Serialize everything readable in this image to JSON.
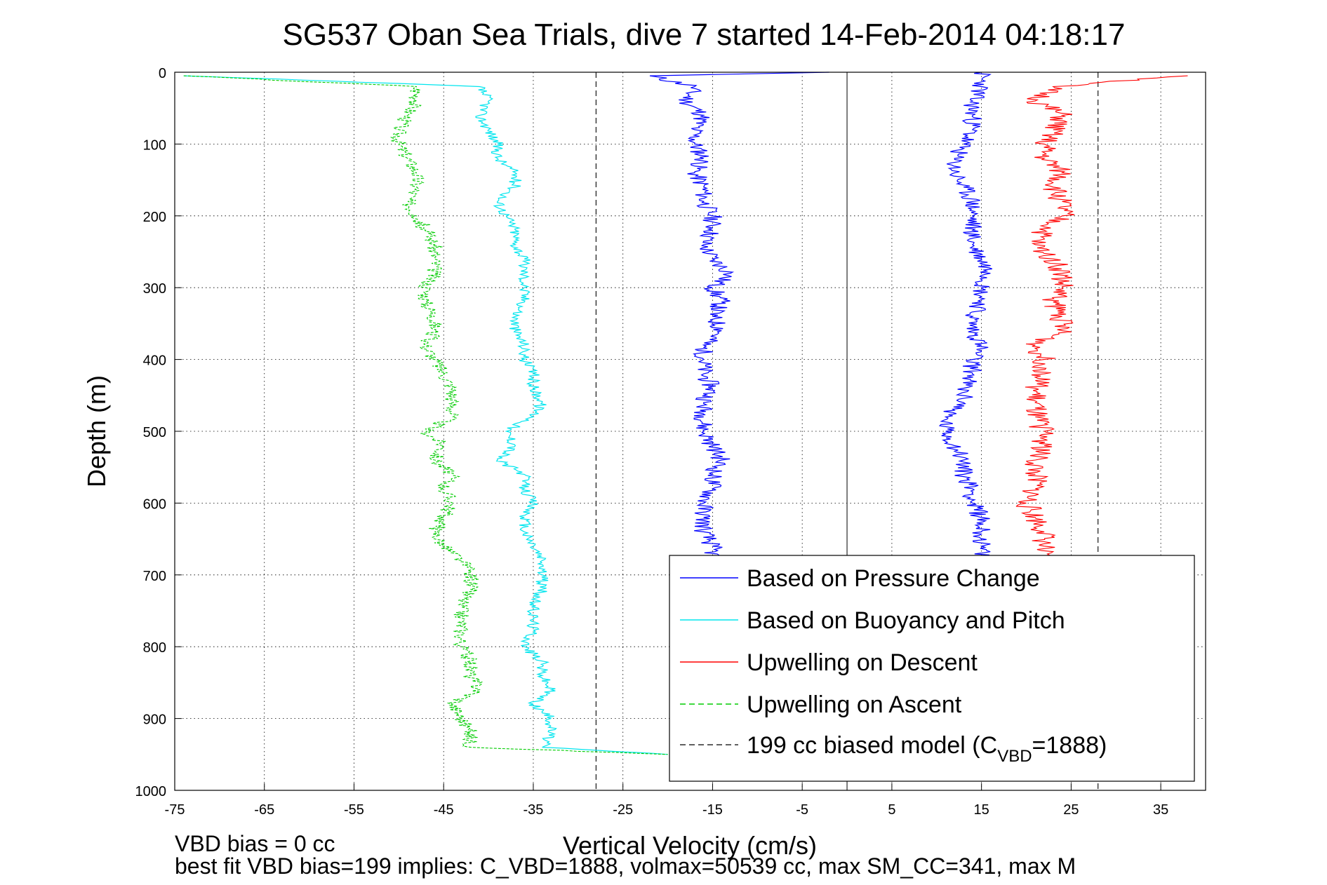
{
  "chart_data": {
    "type": "line",
    "title": "SG537 Oban Sea Trials, dive 7 started 14-Feb-2014 04:18:17",
    "xlabel": "Vertical Velocity (cm/s)",
    "ylabel": "Depth (m)",
    "xlim": [
      -75,
      40
    ],
    "ylim": [
      0,
      1000
    ],
    "y_reversed": true,
    "grid": true,
    "legend_position": "bottom-right",
    "x_ticks": [
      -75,
      -65,
      -55,
      -45,
      -35,
      -25,
      -15,
      -5,
      5,
      15,
      25,
      35
    ],
    "y_ticks": [
      0,
      100,
      200,
      300,
      400,
      500,
      600,
      700,
      800,
      900,
      1000
    ],
    "zero_line_x": 0,
    "series": [
      {
        "name": "Based on Pressure Change",
        "color": "#0000ff",
        "style": "solid",
        "depth": [
          0,
          5,
          20,
          40,
          60,
          80,
          100,
          120,
          140,
          160,
          180,
          200,
          220,
          240,
          260,
          280,
          300,
          320,
          340,
          360,
          380,
          400,
          420,
          440,
          460,
          480,
          500,
          520,
          540,
          560,
          580,
          600,
          620,
          640,
          660,
          680
        ],
        "descent_vv": [
          -2,
          -22,
          -17,
          -18,
          -16,
          -17,
          -17,
          -16,
          -17,
          -16,
          -16,
          -15,
          -15,
          -16,
          -15,
          -13,
          -15,
          -14,
          -15,
          -14,
          -16,
          -16,
          -16,
          -15,
          -16,
          -16,
          -16,
          -15,
          -14,
          -15,
          -15,
          -16,
          -16,
          -16,
          -15,
          -15
        ],
        "ascent_depth": [
          0,
          20,
          40,
          60,
          80,
          100,
          120,
          140,
          160,
          180,
          200,
          220,
          240,
          260,
          280,
          300,
          320,
          340,
          360,
          380,
          400,
          420,
          440,
          460,
          480,
          500,
          520,
          540,
          560,
          580,
          600,
          620,
          640,
          660,
          680
        ],
        "ascent_vv": [
          15,
          15,
          14,
          14,
          14,
          13,
          12,
          12,
          13,
          14,
          14,
          14,
          14,
          15,
          16,
          15,
          15,
          14,
          14,
          15,
          14,
          14,
          13,
          13,
          11,
          11,
          12,
          13,
          13,
          14,
          14,
          15,
          15,
          15,
          15
        ]
      },
      {
        "name": "Based on Buoyancy and Pitch",
        "color": "#00e5ee",
        "style": "solid",
        "depth": [
          5,
          20,
          40,
          60,
          80,
          100,
          120,
          140,
          160,
          180,
          200,
          220,
          240,
          260,
          280,
          300,
          320,
          340,
          360,
          380,
          400,
          420,
          440,
          460,
          480,
          500,
          520,
          540,
          560,
          580,
          600,
          620,
          640,
          660,
          680,
          700,
          720,
          740,
          760,
          780,
          800,
          820,
          840,
          860,
          880,
          900,
          920,
          940,
          950
        ],
        "values": [
          -74,
          -41,
          -40,
          -41,
          -40,
          -39,
          -39,
          -37,
          -37,
          -39,
          -38,
          -37,
          -37,
          -36,
          -36,
          -36,
          -36,
          -37,
          -37,
          -36,
          -36,
          -35,
          -35,
          -34,
          -35,
          -38,
          -37,
          -39,
          -36,
          -36,
          -35,
          -36,
          -36,
          -35,
          -34,
          -34,
          -34,
          -35,
          -35,
          -35,
          -36,
          -34,
          -34,
          -33,
          -35,
          -33,
          -33,
          -34,
          -20
        ]
      },
      {
        "name": "Upwelling on Descent",
        "color": "#ff0000",
        "style": "solid",
        "depth": [
          5,
          20,
          40,
          60,
          80,
          100,
          120,
          140,
          160,
          180,
          200,
          220,
          240,
          260,
          280,
          300,
          320,
          340,
          360,
          380,
          400,
          420,
          440,
          460,
          480,
          500,
          520,
          540,
          560,
          580,
          600,
          620,
          640,
          660,
          680
        ],
        "values": [
          38,
          23,
          21,
          24,
          23,
          22,
          22,
          24,
          23,
          24,
          24,
          22,
          21,
          23,
          24,
          24,
          23,
          24,
          24,
          21,
          22,
          22,
          21,
          21,
          21,
          22,
          22,
          21,
          21,
          21,
          20,
          21,
          22,
          22,
          21
        ]
      },
      {
        "name": "Upwelling on Ascent",
        "color": "#00cc00",
        "style": "dashed",
        "depth": [
          5,
          20,
          40,
          60,
          80,
          100,
          120,
          140,
          160,
          180,
          200,
          220,
          240,
          260,
          280,
          300,
          320,
          340,
          360,
          380,
          400,
          420,
          440,
          460,
          480,
          500,
          520,
          540,
          560,
          580,
          600,
          620,
          640,
          660,
          680,
          700,
          720,
          740,
          760,
          780,
          800,
          820,
          840,
          860,
          880,
          900,
          920,
          940,
          950
        ],
        "values": [
          -74,
          -48,
          -48,
          -49,
          -50,
          -50,
          -49,
          -48,
          -48,
          -49,
          -48,
          -47,
          -46,
          -46,
          -46,
          -47,
          -47,
          -46,
          -46,
          -47,
          -46,
          -45,
          -44,
          -44,
          -44,
          -47,
          -45,
          -46,
          -44,
          -45,
          -44,
          -45,
          -46,
          -45,
          -43,
          -42,
          -42,
          -43,
          -43,
          -43,
          -43,
          -42,
          -42,
          -41,
          -44,
          -43,
          -42,
          -42,
          -20
        ]
      },
      {
        "name": "199 cc biased model (C",
        "name_sub": "VBD",
        "name_tail": "=1888)",
        "color": "#000000",
        "style": "dashed",
        "vertical_lines_x": [
          -28,
          28
        ]
      }
    ]
  },
  "notes": {
    "line1": "VBD bias = 0 cc",
    "line2": "best fit VBD bias=199 implies: C_VBD=1888, volmax=50539 cc, max SM_CC=341, max M"
  }
}
